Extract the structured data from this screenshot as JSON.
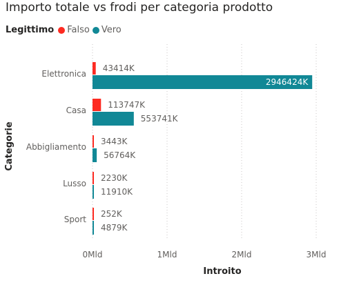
{
  "chart_data": {
    "type": "bar",
    "orientation": "horizontal",
    "title": "Importo totale vs frodi per categoria prodotto",
    "legend_title": "Legittimo",
    "legend_position": "top-left",
    "xlabel": "Introito",
    "ylabel": "Categorie",
    "categories": [
      "Elettronica",
      "Casa",
      "Abbigliamento",
      "Lusso",
      "Sport"
    ],
    "series": [
      {
        "name": "Falso",
        "color": "#fd2a21",
        "values": [
          43414000,
          113747000,
          3443000,
          2230000,
          252000
        ],
        "labels": [
          "43414K",
          "113747K",
          "3443K",
          "2230K",
          "252K"
        ]
      },
      {
        "name": "Vero",
        "color": "#118896",
        "values": [
          2946424000,
          553741000,
          56764000,
          11910000,
          4879000
        ],
        "labels": [
          "2946424K",
          "553741K",
          "56764K",
          "11910K",
          "4879K"
        ]
      }
    ],
    "xlim": [
      0,
      3000000000
    ],
    "xticks": [
      0,
      1000000000,
      2000000000,
      3000000000
    ],
    "xtick_labels": [
      "0Mld",
      "1Mld",
      "2Mld",
      "3Mld"
    ],
    "grid": true
  }
}
